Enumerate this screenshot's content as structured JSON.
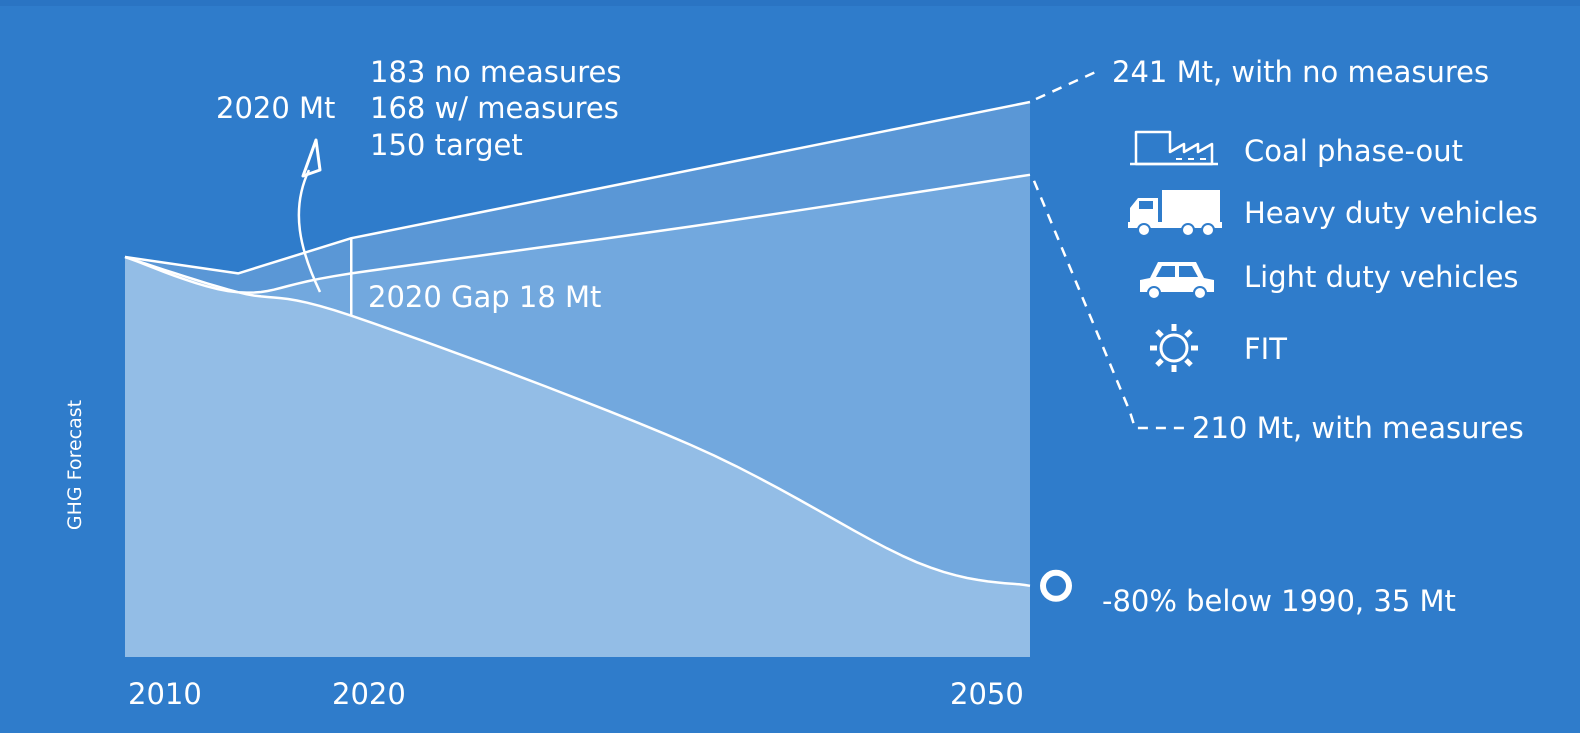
{
  "chart_data": {
    "type": "area",
    "ylabel": "GHG Forecast",
    "x_ticks": [
      "2010",
      "2020",
      "2050"
    ],
    "xlim": [
      2010,
      2050
    ],
    "series": [
      {
        "name": "no measures",
        "points": [
          [
            2010,
            175
          ],
          [
            2015,
            168
          ],
          [
            2020,
            183
          ],
          [
            2050,
            241
          ]
        ]
      },
      {
        "name": "with measures",
        "points": [
          [
            2010,
            175
          ],
          [
            2015,
            160
          ],
          [
            2020,
            168
          ],
          [
            2035,
            188
          ],
          [
            2050,
            210
          ]
        ]
      },
      {
        "name": "target",
        "points": [
          [
            2010,
            175
          ],
          [
            2015,
            160
          ],
          [
            2020,
            150
          ],
          [
            2035,
            95
          ],
          [
            2045,
            45
          ],
          [
            2050,
            35
          ]
        ]
      }
    ],
    "gap": {
      "year": 2020,
      "label": "2020 Gap 18 Mt"
    },
    "annotations": {
      "mt_2020_label": "2020 Mt",
      "mt_2020_lines": [
        "183 no measures",
        "168 w/ measures",
        "150 target"
      ],
      "end_no_measures": "241 Mt, with no measures",
      "end_with_measures": "210 Mt, with measures",
      "end_target": "-80% below 1990, 35 Mt"
    },
    "legend": [
      {
        "icon": "factory-icon",
        "label": "Coal phase-out"
      },
      {
        "icon": "truck-icon",
        "label": "Heavy duty vehicles"
      },
      {
        "icon": "car-icon",
        "label": "Light duty vehicles"
      },
      {
        "icon": "sun-icon",
        "label": "FIT"
      }
    ],
    "colors": {
      "background": "#2f7ccb",
      "band_upper": "#5a97d6",
      "band_middle": "#72a8de",
      "band_lower": "#93bde6",
      "lines": "#ffffff"
    }
  }
}
